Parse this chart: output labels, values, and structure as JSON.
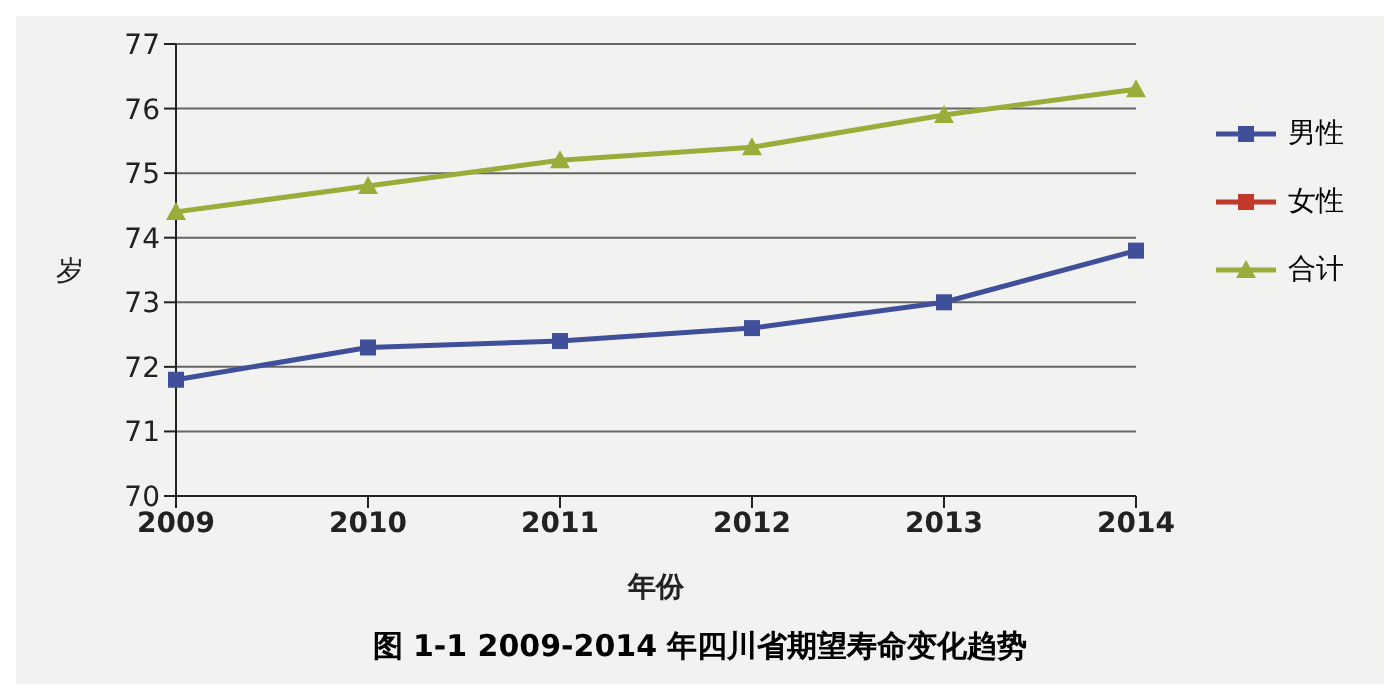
{
  "chart_data": {
    "type": "line",
    "title": "图 1-1   2009-2014 年四川省期望寿命变化趋势",
    "xlabel": "年份",
    "ylabel": "岁",
    "categories": [
      "2009",
      "2010",
      "2011",
      "2012",
      "2013",
      "2014"
    ],
    "series": [
      {
        "name": "男性",
        "color": "#3f4f9a",
        "marker": "square",
        "values": [
          71.8,
          72.3,
          72.4,
          72.6,
          73.0,
          73.8
        ]
      },
      {
        "name": "女性",
        "color": "#c0392b",
        "marker": "square",
        "values": [
          null,
          null,
          null,
          null,
          null,
          null
        ]
      },
      {
        "name": "合计",
        "color": "#9aad3a",
        "marker": "triangle",
        "values": [
          74.4,
          74.8,
          75.2,
          75.4,
          75.9,
          76.3
        ]
      }
    ],
    "ylim": [
      70,
      77
    ],
    "yticks": [
      70,
      71,
      72,
      73,
      74,
      75,
      76,
      77
    ],
    "grid": "y",
    "legend": "right"
  }
}
